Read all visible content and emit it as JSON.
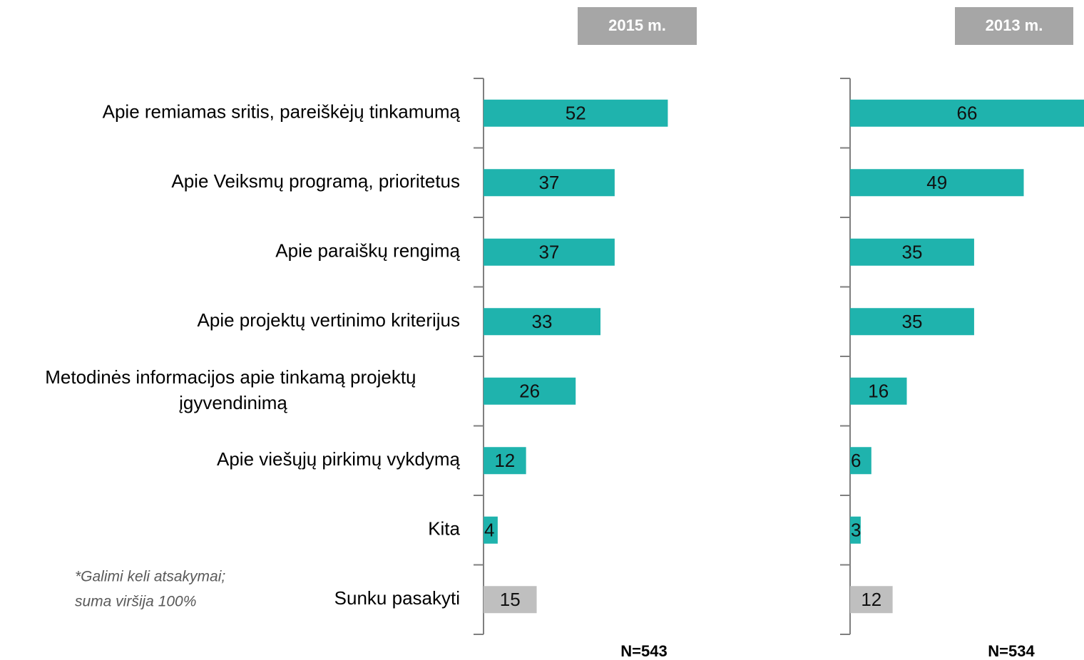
{
  "chart_data": [
    {
      "type": "bar",
      "orientation": "horizontal",
      "title": "2015 m.",
      "note": "N=543",
      "categories": [
        "Apie remiamas sritis, pareiškėjų tinkamumą",
        "Apie Veiksmų programą, prioritetus",
        "Apie paraiškų rengimą",
        "Apie projektų vertinimo kriterijus",
        "Metodinės informacijos apie tinkamą projektų įgyvendinimą",
        "Apie viešųjų pirkimų vykdymą",
        "Kita",
        "Sunku pasakyti"
      ],
      "values": [
        52,
        37,
        37,
        33,
        26,
        12,
        4,
        15
      ],
      "colors": [
        "#1fb3ad",
        "#1fb3ad",
        "#1fb3ad",
        "#1fb3ad",
        "#1fb3ad",
        "#1fb3ad",
        "#1fb3ad",
        "#bfbfbf"
      ],
      "xlim": [
        0,
        66
      ]
    },
    {
      "type": "bar",
      "orientation": "horizontal",
      "title": "2013 m.",
      "note": "N=534",
      "values": [
        66,
        49,
        35,
        35,
        16,
        6,
        3,
        12
      ],
      "colors": [
        "#1fb3ad",
        "#1fb3ad",
        "#1fb3ad",
        "#1fb3ad",
        "#1fb3ad",
        "#1fb3ad",
        "#1fb3ad",
        "#bfbfbf"
      ],
      "xlim": [
        0,
        66
      ]
    }
  ],
  "footnote": [
    "*Galimi keli atsakymai;",
    "suma viršija 100%"
  ]
}
